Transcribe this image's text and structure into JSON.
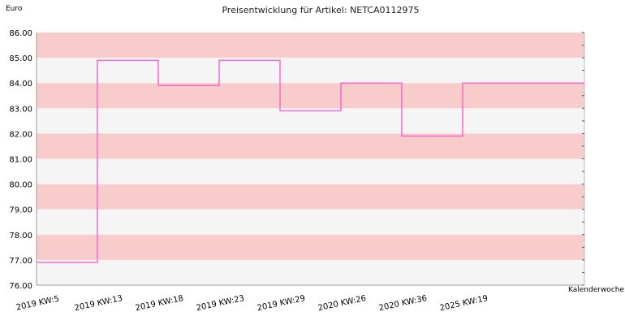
{
  "chart_data": {
    "type": "line",
    "step": true,
    "title": "Preisentwicklung für Artikel: NETCA0112975",
    "ylabel": "Euro",
    "xlabel": "Kalenderwoche",
    "ylim": [
      76,
      86
    ],
    "yticks": [
      "76.00",
      "77.00",
      "78.00",
      "79.00",
      "80.00",
      "81.00",
      "82.00",
      "83.00",
      "84.00",
      "85.00",
      "86.00"
    ],
    "categories": [
      "2019 KW:5",
      "2019 KW:13",
      "2019 KW:18",
      "2019 KW:23",
      "2019 KW:29",
      "2020 KW:26",
      "2020 KW:36",
      "2025 KW:19"
    ],
    "series": [
      {
        "values": [
          76.9,
          84.9,
          83.9,
          84.9,
          82.9,
          84.0,
          81.9,
          84.0
        ],
        "color": "#ff66cc"
      }
    ],
    "band_colors": [
      "#f9cccc",
      "#f5f5f5"
    ],
    "grid": true
  }
}
